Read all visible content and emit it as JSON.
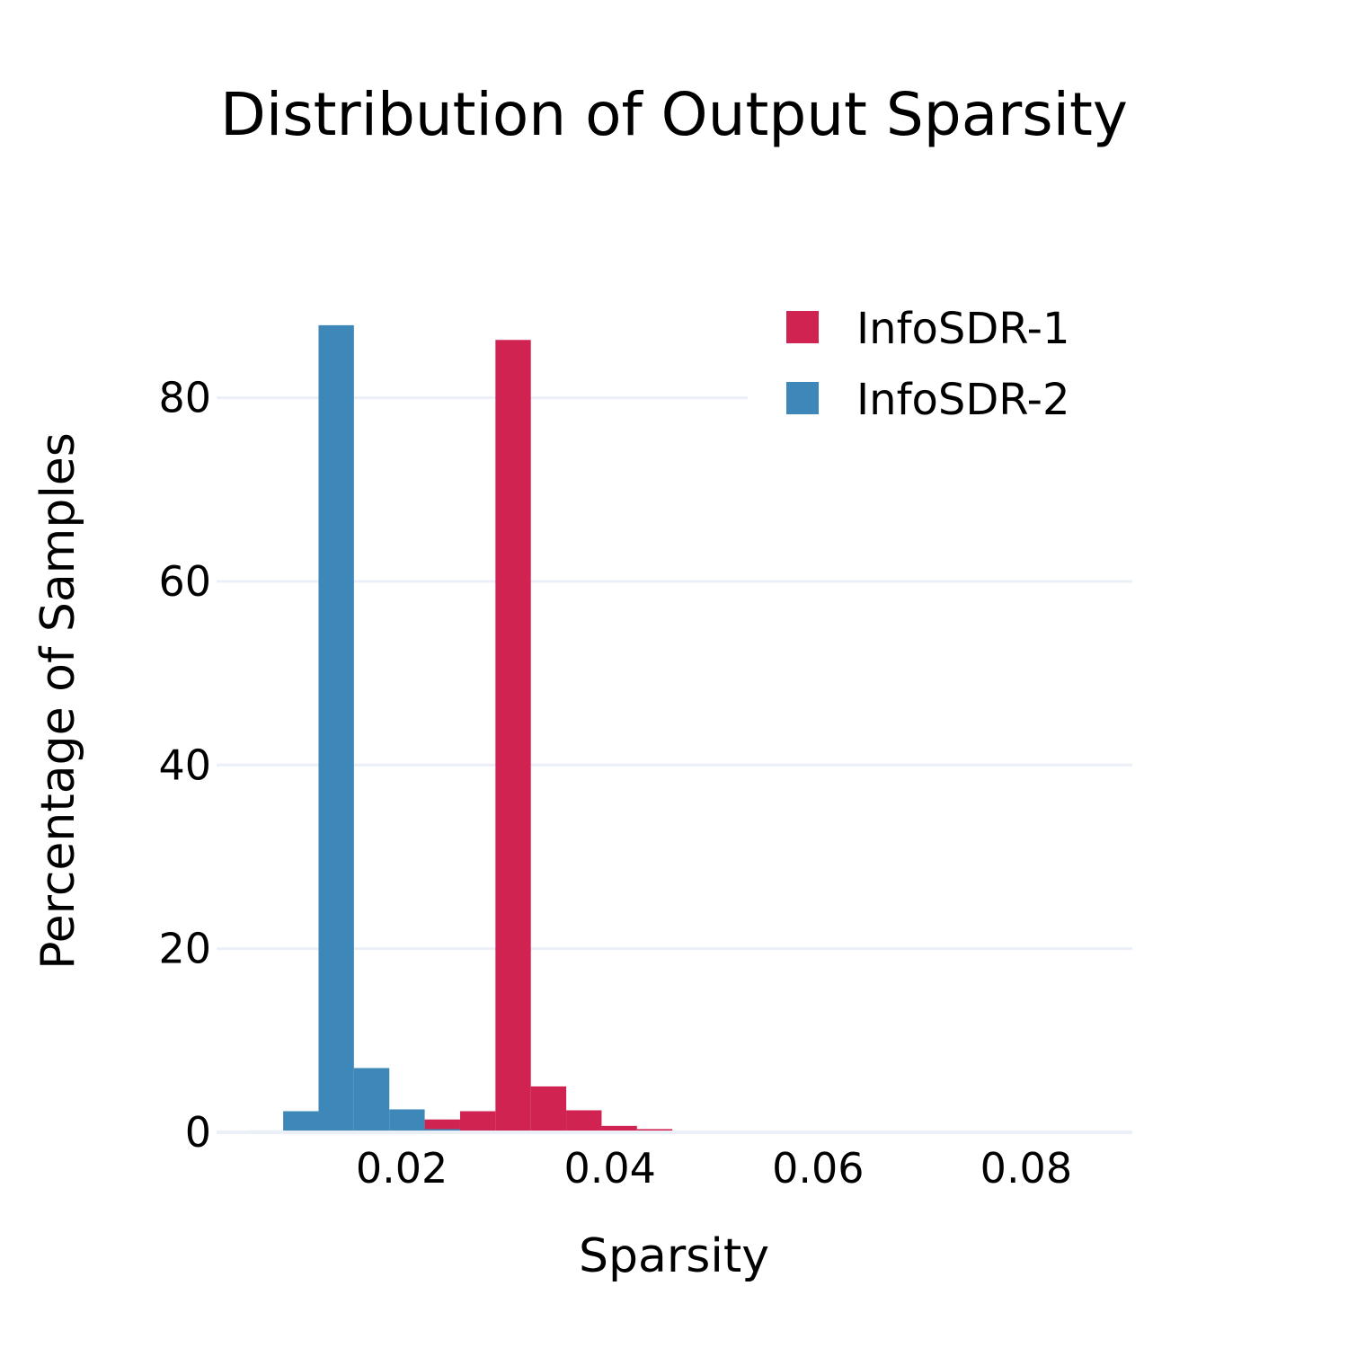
{
  "chart_data": {
    "type": "bar",
    "title": "Distribution of Output Sparsity",
    "xlabel": "Sparsity",
    "ylabel": "Percentage of Samples",
    "xlim": [
      0.0022,
      0.0902
    ],
    "ylim": [
      0,
      92
    ],
    "x_ticks": [
      {
        "value": 0.02,
        "label": "0.02"
      },
      {
        "value": 0.04,
        "label": "0.04"
      },
      {
        "value": 0.06,
        "label": "0.06"
      },
      {
        "value": 0.08,
        "label": "0.08"
      }
    ],
    "y_ticks": [
      {
        "value": 0,
        "label": "0"
      },
      {
        "value": 20,
        "label": "20"
      },
      {
        "value": 40,
        "label": "40"
      },
      {
        "value": 60,
        "label": "60"
      },
      {
        "value": 80,
        "label": "80"
      }
    ],
    "grid": true,
    "legend_position": "top-right",
    "bin_width": 0.0034,
    "series": [
      {
        "name": "InfoSDR-1",
        "color": "#d02352",
        "bins": [
          {
            "x0": 0.0222,
            "x1": 0.0256,
            "value": 1.4
          },
          {
            "x0": 0.0256,
            "x1": 0.029,
            "value": 2.3
          },
          {
            "x0": 0.029,
            "x1": 0.0324,
            "value": 86.3
          },
          {
            "x0": 0.0324,
            "x1": 0.0358,
            "value": 5.0
          },
          {
            "x0": 0.0358,
            "x1": 0.0392,
            "value": 2.4
          },
          {
            "x0": 0.0392,
            "x1": 0.0426,
            "value": 0.7
          },
          {
            "x0": 0.0426,
            "x1": 0.046,
            "value": 0.35
          },
          {
            "x0": 0.046,
            "x1": 0.0494,
            "value": 0.12
          },
          {
            "x0": 0.0494,
            "x1": 0.0528,
            "value": 0.1
          }
        ]
      },
      {
        "name": "InfoSDR-2",
        "color": "#3d88b8",
        "bins": [
          {
            "x0": 0.0022,
            "x1": 0.0052,
            "value": 0.1
          },
          {
            "x0": 0.0052,
            "x1": 0.0086,
            "value": 0.2
          },
          {
            "x0": 0.0086,
            "x1": 0.012,
            "value": 2.3
          },
          {
            "x0": 0.012,
            "x1": 0.0154,
            "value": 87.9
          },
          {
            "x0": 0.0154,
            "x1": 0.0188,
            "value": 7.0
          },
          {
            "x0": 0.0188,
            "x1": 0.0222,
            "value": 2.5
          },
          {
            "x0": 0.0222,
            "x1": 0.0256,
            "value": 0.35
          },
          {
            "x0": 0.0256,
            "x1": 0.029,
            "value": 0.2
          }
        ]
      }
    ]
  }
}
